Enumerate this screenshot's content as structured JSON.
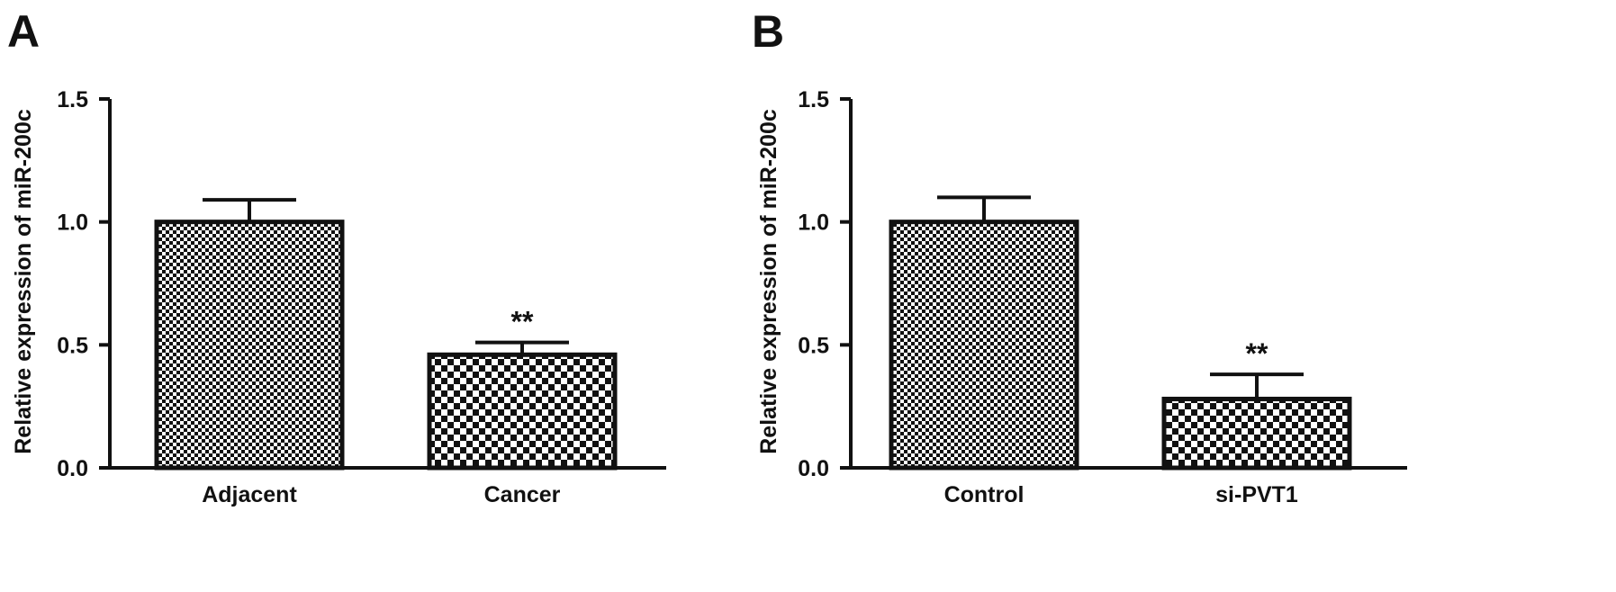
{
  "chart_data": [
    {
      "type": "bar",
      "panel_label": "A",
      "categories": [
        "Adjacent",
        "Cancer"
      ],
      "values": [
        1.0,
        0.46
      ],
      "error_bars": [
        0.09,
        0.05
      ],
      "annotations": [
        "",
        "**"
      ],
      "ylabel": "Relative expression of miR-200c",
      "xlabel": "",
      "ylim": [
        0,
        1.5
      ],
      "yticks": [
        "0.0",
        "0.5",
        "1.0",
        "1.5"
      ],
      "fill_patterns": [
        "fine-checker",
        "coarse-checker"
      ],
      "grid": false,
      "legend": "none"
    },
    {
      "type": "bar",
      "panel_label": "B",
      "categories": [
        "Control",
        "si-PVT1"
      ],
      "values": [
        1.0,
        0.28
      ],
      "error_bars": [
        0.1,
        0.1
      ],
      "annotations": [
        "",
        "**"
      ],
      "ylabel": "Relative expression of miR-200c",
      "xlabel": "",
      "ylim": [
        0,
        1.5
      ],
      "yticks": [
        "0.0",
        "0.5",
        "1.0",
        "1.5"
      ],
      "fill_patterns": [
        "fine-checker",
        "coarse-checker"
      ],
      "grid": false,
      "legend": "none"
    }
  ],
  "colors": {
    "ink": "#111111",
    "background": "#ffffff"
  }
}
